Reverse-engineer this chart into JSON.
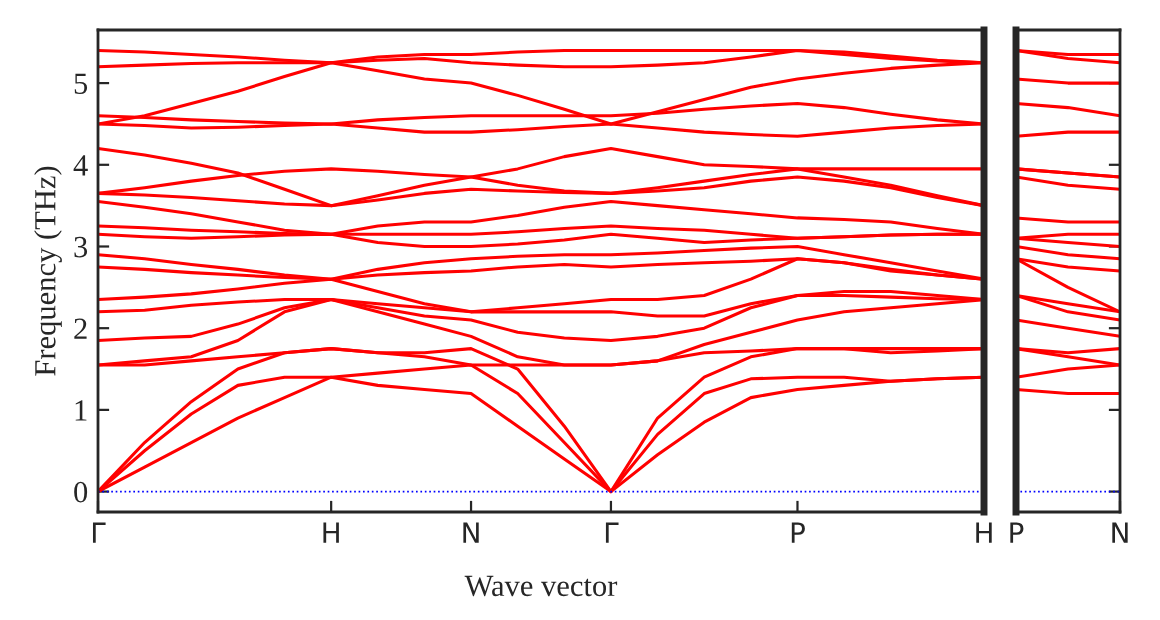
{
  "chart_data": [
    {
      "type": "line",
      "xlabel": "Wave vector",
      "ylabel": "Frequency (THz)",
      "categories": [
        "Γ",
        null,
        null,
        null,
        null,
        "H",
        null,
        null,
        "N",
        null,
        null,
        "Γ",
        null,
        null,
        null,
        "P",
        null,
        null,
        null,
        "H"
      ],
      "ylim": [
        -0.25,
        5.65
      ],
      "yticks": [
        0,
        1,
        2,
        3,
        4,
        5
      ],
      "grid": false,
      "marker": "none",
      "line_style": "solid",
      "ref_lines": [
        {
          "axis": "y",
          "value": 0,
          "color": "#0000ff",
          "line_style": "dotted"
        }
      ],
      "series": [
        {
          "color": "#ff0000",
          "values": [
            0,
            0.3,
            0.6,
            0.9,
            1.15,
            1.4,
            1.3,
            1.25,
            1.2,
            0.8,
            0.4,
            0,
            0.45,
            0.85,
            1.15,
            1.25,
            1.3,
            1.35,
            1.38,
            1.4
          ]
        },
        {
          "color": "#ff0000",
          "values": [
            0,
            0.5,
            0.95,
            1.3,
            1.4,
            1.4,
            1.45,
            1.5,
            1.55,
            1.2,
            0.6,
            0,
            0.7,
            1.2,
            1.38,
            1.4,
            1.4,
            1.35,
            1.38,
            1.4
          ]
        },
        {
          "color": "#ff0000",
          "values": [
            0,
            0.6,
            1.1,
            1.5,
            1.7,
            1.75,
            1.7,
            1.7,
            1.75,
            1.5,
            0.8,
            0,
            0.9,
            1.4,
            1.65,
            1.75,
            1.75,
            1.7,
            1.72,
            1.75
          ]
        },
        {
          "color": "#ff0000",
          "values": [
            1.55,
            1.55,
            1.6,
            1.65,
            1.7,
            1.75,
            1.7,
            1.65,
            1.55,
            1.55,
            1.55,
            1.55,
            1.6,
            1.7,
            1.72,
            1.75,
            1.75,
            1.75,
            1.75,
            1.75
          ]
        },
        {
          "color": "#ff0000",
          "values": [
            1.55,
            1.6,
            1.65,
            1.85,
            2.2,
            2.35,
            2.2,
            2.05,
            1.9,
            1.65,
            1.55,
            1.55,
            1.6,
            1.8,
            1.95,
            2.1,
            2.2,
            2.25,
            2.3,
            2.35
          ]
        },
        {
          "color": "#ff0000",
          "values": [
            1.85,
            1.88,
            1.9,
            2.05,
            2.25,
            2.35,
            2.25,
            2.15,
            2.1,
            1.95,
            1.88,
            1.85,
            1.9,
            2.0,
            2.25,
            2.4,
            2.4,
            2.38,
            2.36,
            2.35
          ]
        },
        {
          "color": "#ff0000",
          "values": [
            2.2,
            2.22,
            2.28,
            2.32,
            2.35,
            2.35,
            2.3,
            2.25,
            2.2,
            2.2,
            2.2,
            2.2,
            2.15,
            2.15,
            2.3,
            2.4,
            2.45,
            2.45,
            2.4,
            2.35
          ]
        },
        {
          "color": "#ff0000",
          "values": [
            2.35,
            2.38,
            2.42,
            2.48,
            2.55,
            2.6,
            2.45,
            2.3,
            2.2,
            2.25,
            2.3,
            2.35,
            2.35,
            2.4,
            2.6,
            2.85,
            2.8,
            2.7,
            2.65,
            2.6
          ]
        },
        {
          "color": "#ff0000",
          "values": [
            2.75,
            2.72,
            2.68,
            2.65,
            2.62,
            2.6,
            2.65,
            2.68,
            2.7,
            2.75,
            2.78,
            2.75,
            2.78,
            2.8,
            2.82,
            2.85,
            2.8,
            2.72,
            2.65,
            2.6
          ]
        },
        {
          "color": "#ff0000",
          "values": [
            2.9,
            2.85,
            2.78,
            2.72,
            2.65,
            2.6,
            2.72,
            2.8,
            2.85,
            2.88,
            2.9,
            2.9,
            2.92,
            2.95,
            2.98,
            3.0,
            2.9,
            2.8,
            2.7,
            2.6
          ]
        },
        {
          "color": "#ff0000",
          "values": [
            3.15,
            3.12,
            3.1,
            3.12,
            3.14,
            3.15,
            3.05,
            3.0,
            3.0,
            3.03,
            3.08,
            3.15,
            3.1,
            3.05,
            3.08,
            3.1,
            3.12,
            3.14,
            3.15,
            3.15
          ]
        },
        {
          "color": "#ff0000",
          "values": [
            3.25,
            3.23,
            3.2,
            3.18,
            3.16,
            3.15,
            3.15,
            3.15,
            3.15,
            3.18,
            3.22,
            3.25,
            3.22,
            3.2,
            3.15,
            3.1,
            3.12,
            3.14,
            3.15,
            3.15
          ]
        },
        {
          "color": "#ff0000",
          "values": [
            3.55,
            3.48,
            3.4,
            3.3,
            3.2,
            3.15,
            3.25,
            3.3,
            3.3,
            3.38,
            3.48,
            3.55,
            3.5,
            3.45,
            3.4,
            3.35,
            3.33,
            3.3,
            3.22,
            3.15
          ]
        },
        {
          "color": "#ff0000",
          "values": [
            3.65,
            3.63,
            3.6,
            3.56,
            3.52,
            3.5,
            3.57,
            3.65,
            3.7,
            3.68,
            3.66,
            3.65,
            3.68,
            3.72,
            3.8,
            3.85,
            3.8,
            3.72,
            3.6,
            3.5
          ]
        },
        {
          "color": "#ff0000",
          "values": [
            4.2,
            4.12,
            4.02,
            3.9,
            3.7,
            3.5,
            3.62,
            3.75,
            3.85,
            3.95,
            4.1,
            4.2,
            4.1,
            4.0,
            3.98,
            3.95,
            3.85,
            3.75,
            3.62,
            3.5
          ]
        },
        {
          "color": "#ff0000",
          "values": [
            3.65,
            3.72,
            3.8,
            3.87,
            3.92,
            3.95,
            3.92,
            3.88,
            3.85,
            3.75,
            3.68,
            3.65,
            3.72,
            3.8,
            3.88,
            3.95,
            3.95,
            3.95,
            3.95,
            3.95
          ]
        },
        {
          "color": "#ff0000",
          "values": [
            4.5,
            4.48,
            4.45,
            4.46,
            4.48,
            4.5,
            4.45,
            4.4,
            4.4,
            4.43,
            4.47,
            4.5,
            4.45,
            4.4,
            4.37,
            4.35,
            4.4,
            4.45,
            4.48,
            4.5
          ]
        },
        {
          "color": "#ff0000",
          "values": [
            4.6,
            4.58,
            4.55,
            4.53,
            4.51,
            4.5,
            4.55,
            4.58,
            4.6,
            4.6,
            4.6,
            4.6,
            4.63,
            4.68,
            4.72,
            4.75,
            4.7,
            4.62,
            4.55,
            4.5
          ]
        },
        {
          "color": "#ff0000",
          "values": [
            4.5,
            4.6,
            4.75,
            4.9,
            5.08,
            5.25,
            5.15,
            5.05,
            5.0,
            4.85,
            4.68,
            4.5,
            4.65,
            4.8,
            4.95,
            5.05,
            5.12,
            5.18,
            5.22,
            5.25
          ]
        },
        {
          "color": "#ff0000",
          "values": [
            5.2,
            5.22,
            5.24,
            5.25,
            5.25,
            5.25,
            5.28,
            5.3,
            5.25,
            5.22,
            5.2,
            5.2,
            5.22,
            5.25,
            5.32,
            5.4,
            5.35,
            5.3,
            5.27,
            5.25
          ]
        },
        {
          "color": "#ff0000",
          "values": [
            5.4,
            5.38,
            5.35,
            5.32,
            5.28,
            5.25,
            5.32,
            5.35,
            5.35,
            5.38,
            5.4,
            5.4,
            5.4,
            5.4,
            5.4,
            5.4,
            5.38,
            5.33,
            5.28,
            5.25
          ]
        }
      ]
    },
    {
      "type": "line",
      "categories": [
        "P",
        null,
        "N"
      ],
      "ylim": [
        -0.25,
        5.65
      ],
      "yticks": [
        0,
        1,
        2,
        3,
        4,
        5
      ],
      "tick_labels": "x",
      "grid": false,
      "marker": "none",
      "line_style": "solid",
      "ref_lines": [
        {
          "axis": "y",
          "value": 0,
          "color": "#0000ff",
          "line_style": "dotted"
        }
      ],
      "series": [
        {
          "color": "#ff0000",
          "values": [
            1.25,
            1.2,
            1.2
          ]
        },
        {
          "color": "#ff0000",
          "values": [
            1.4,
            1.5,
            1.55
          ]
        },
        {
          "color": "#ff0000",
          "values": [
            1.75,
            1.7,
            1.75
          ]
        },
        {
          "color": "#ff0000",
          "values": [
            1.75,
            1.65,
            1.55
          ]
        },
        {
          "color": "#ff0000",
          "values": [
            2.1,
            2.0,
            1.9
          ]
        },
        {
          "color": "#ff0000",
          "values": [
            2.4,
            2.2,
            2.1
          ]
        },
        {
          "color": "#ff0000",
          "values": [
            2.4,
            2.3,
            2.2
          ]
        },
        {
          "color": "#ff0000",
          "values": [
            2.85,
            2.5,
            2.2
          ]
        },
        {
          "color": "#ff0000",
          "values": [
            2.85,
            2.75,
            2.7
          ]
        },
        {
          "color": "#ff0000",
          "values": [
            3.0,
            2.9,
            2.85
          ]
        },
        {
          "color": "#ff0000",
          "values": [
            3.1,
            3.05,
            3.0
          ]
        },
        {
          "color": "#ff0000",
          "values": [
            3.1,
            3.15,
            3.15
          ]
        },
        {
          "color": "#ff0000",
          "values": [
            3.35,
            3.3,
            3.3
          ]
        },
        {
          "color": "#ff0000",
          "values": [
            3.85,
            3.75,
            3.7
          ]
        },
        {
          "color": "#ff0000",
          "values": [
            3.95,
            3.9,
            3.85
          ]
        },
        {
          "color": "#ff0000",
          "values": [
            3.95,
            3.9,
            3.85
          ]
        },
        {
          "color": "#ff0000",
          "values": [
            4.35,
            4.4,
            4.4
          ]
        },
        {
          "color": "#ff0000",
          "values": [
            4.75,
            4.7,
            4.6
          ]
        },
        {
          "color": "#ff0000",
          "values": [
            5.05,
            5.0,
            5.0
          ]
        },
        {
          "color": "#ff0000",
          "values": [
            5.4,
            5.3,
            5.25
          ]
        },
        {
          "color": "#ff0000",
          "values": [
            5.4,
            5.35,
            5.35
          ]
        }
      ]
    }
  ]
}
